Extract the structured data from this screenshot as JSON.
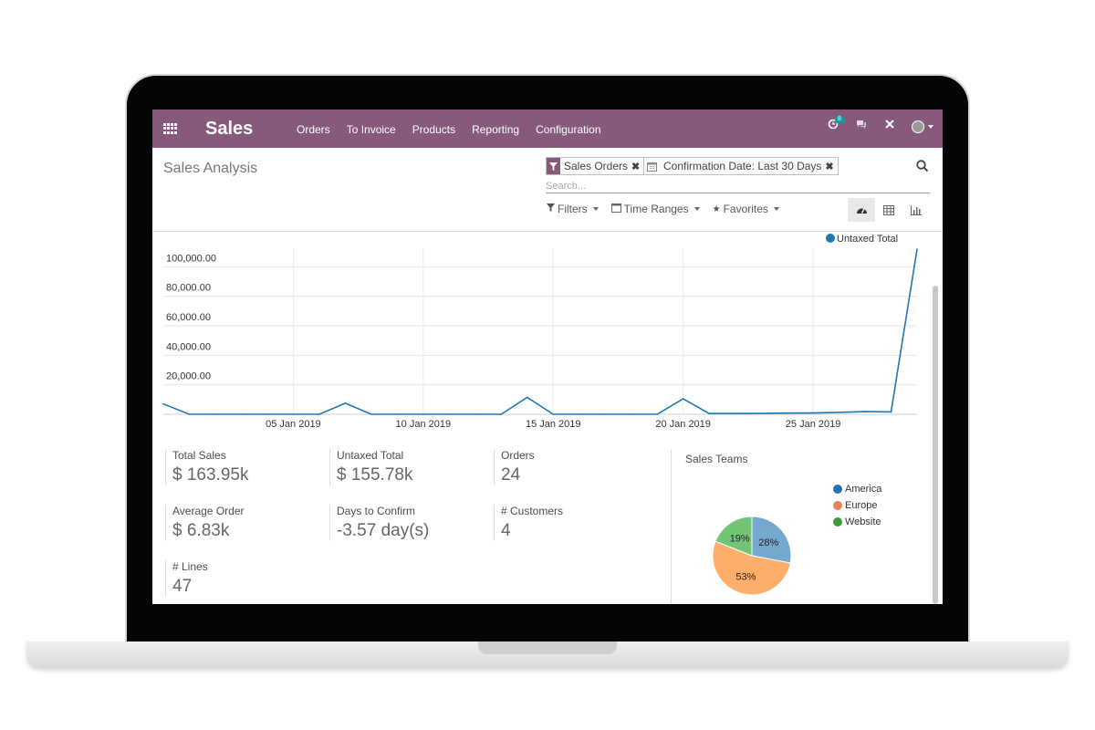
{
  "navbar": {
    "brand": "Sales",
    "menu": [
      "Orders",
      "To Invoice",
      "Products",
      "Reporting",
      "Configuration"
    ],
    "activity_count": "8",
    "accent_color": "#875a7b"
  },
  "control": {
    "breadcrumb": "Sales Analysis",
    "facets": [
      {
        "icon": "filter-icon",
        "label": "Sales Orders"
      },
      {
        "icon": "calendar-icon",
        "label": "Confirmation Date: Last 30 Days"
      }
    ],
    "search_placeholder": "Search...",
    "filters_label": "Filters",
    "time_ranges_label": "Time Ranges",
    "favorites_label": "Favorites",
    "views": [
      "dashboard-icon",
      "pivot-icon",
      "graph-icon"
    ],
    "active_view": "dashboard"
  },
  "chart_data": {
    "type": "line",
    "series": [
      {
        "name": "Untaxed Total",
        "color": "#1f77b4",
        "x": [
          "2018-12-31",
          "2019-01-01",
          "2019-01-02",
          "2019-01-03",
          "2019-01-04",
          "2019-01-05",
          "2019-01-06",
          "2019-01-07",
          "2019-01-08",
          "2019-01-09",
          "2019-01-10",
          "2019-01-11",
          "2019-01-12",
          "2019-01-13",
          "2019-01-14",
          "2019-01-15",
          "2019-01-16",
          "2019-01-17",
          "2019-01-18",
          "2019-01-19",
          "2019-01-20",
          "2019-01-21",
          "2019-01-22",
          "2019-01-23",
          "2019-01-24",
          "2019-01-25",
          "2019-01-26",
          "2019-01-27",
          "2019-01-28",
          "2019-01-29"
        ],
        "values": [
          7000,
          0,
          0,
          0,
          0,
          0,
          0,
          7500,
          0,
          0,
          0,
          0,
          0,
          0,
          11500,
          0,
          0,
          0,
          0,
          0,
          10500,
          500,
          500,
          600,
          800,
          900,
          1300,
          1800,
          1600,
          112000
        ]
      }
    ],
    "x_ticks": [
      "05 Jan 2019",
      "10 Jan 2019",
      "15 Jan 2019",
      "20 Jan 2019",
      "25 Jan 2019"
    ],
    "y_ticks": [
      "20,000.00",
      "40,000.00",
      "60,000.00",
      "80,000.00",
      "100,000.00"
    ],
    "ylim": [
      0,
      112000
    ],
    "grid": true,
    "legend_position": "top-right"
  },
  "kpis": {
    "total_sales": {
      "label": "Total Sales",
      "value": "$ 163.95k"
    },
    "untaxed_total": {
      "label": "Untaxed Total",
      "value": "$ 155.78k"
    },
    "orders": {
      "label": "Orders",
      "value": "24"
    },
    "average_order": {
      "label": "Average Order",
      "value": "$ 6.83k"
    },
    "days_to_confirm": {
      "label": "Days to Confirm",
      "value": "-3.57 day(s)"
    },
    "customers": {
      "label": "# Customers",
      "value": "4"
    },
    "lines": {
      "label": "# Lines",
      "value": "47"
    }
  },
  "sales_teams": {
    "title": "Sales Teams",
    "chart_data": {
      "type": "pie",
      "categories": [
        "America",
        "Europe",
        "Website"
      ],
      "values": [
        28,
        53,
        19
      ],
      "labels": [
        "28%",
        "53%",
        "19%"
      ],
      "colors": [
        "#74a9cf",
        "#fdae6b",
        "#74c476"
      ],
      "legend_colors": [
        "#1f77b4",
        "#e6825a",
        "#3a9c3a"
      ],
      "legend_position": "top-right"
    }
  }
}
